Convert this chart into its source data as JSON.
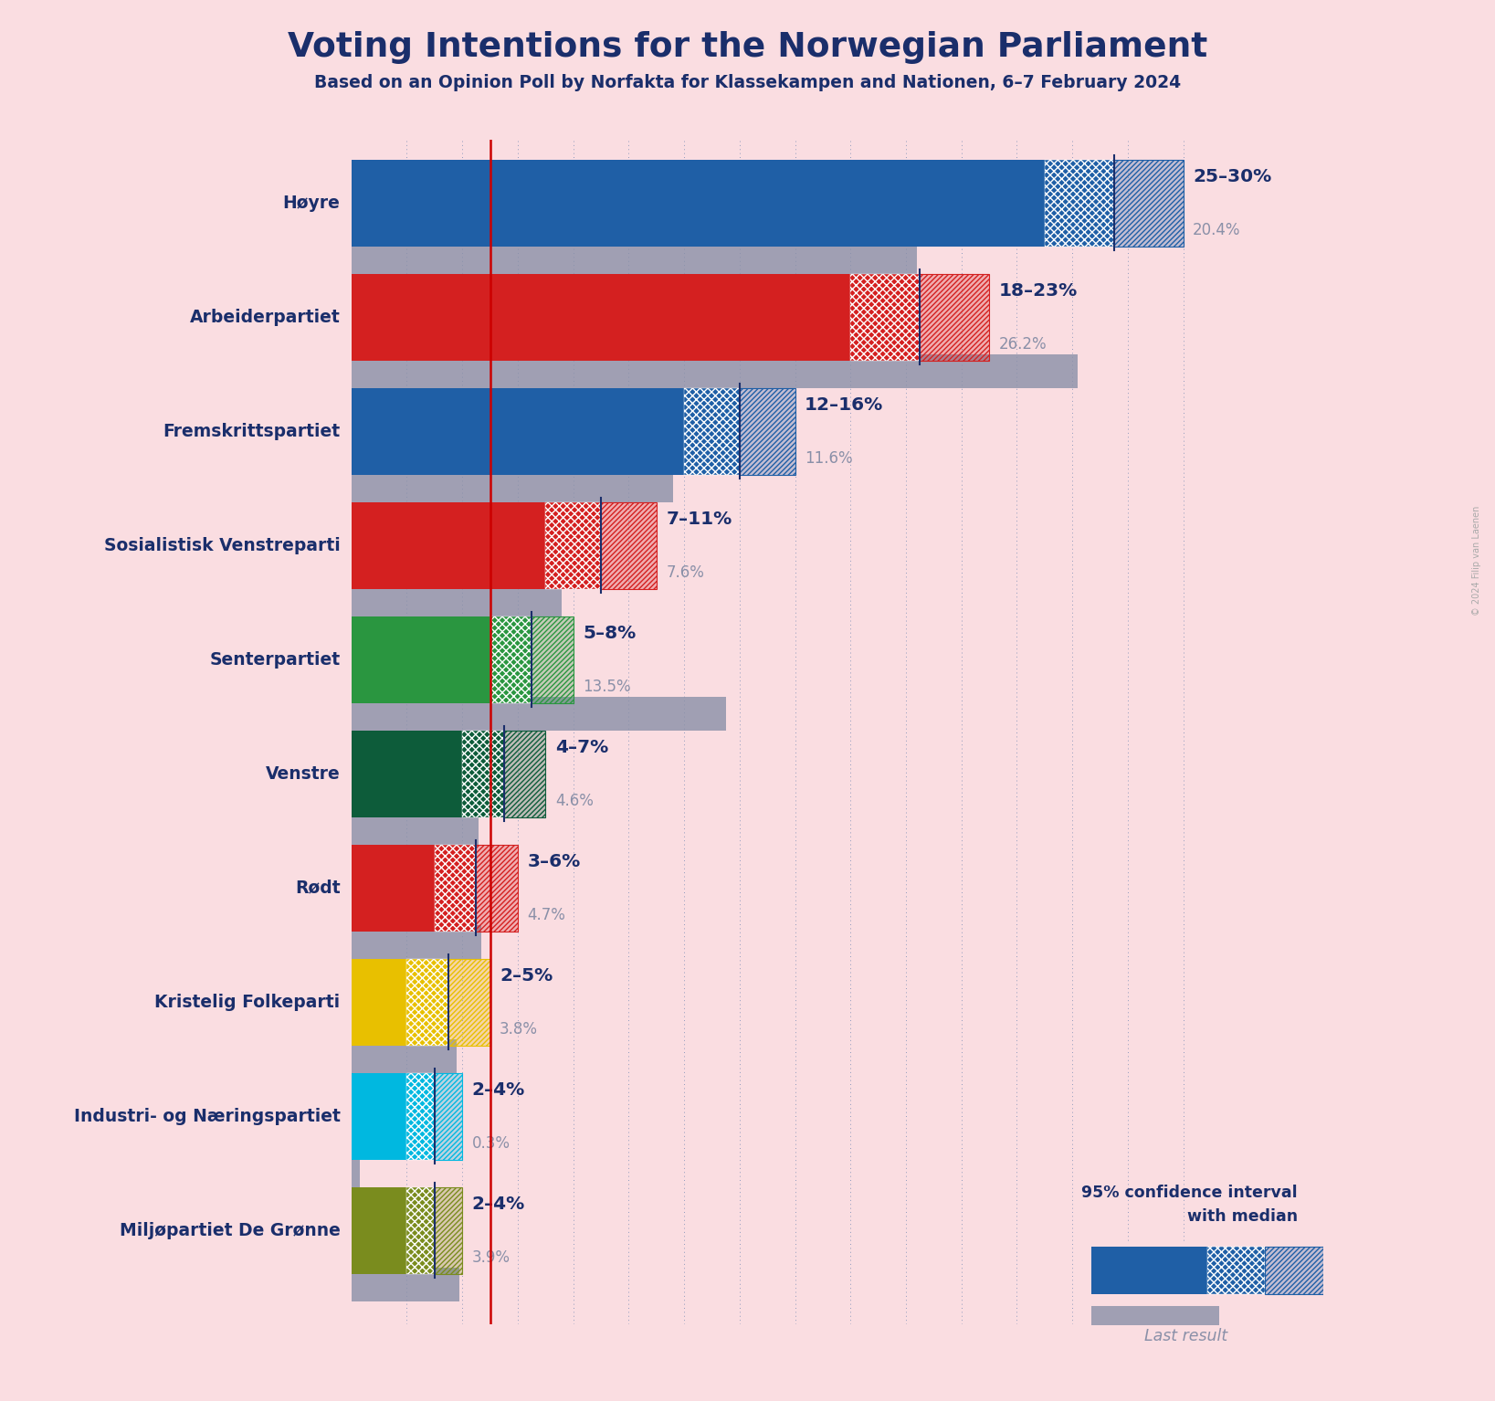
{
  "title": "Voting Intentions for the Norwegian Parliament",
  "subtitle": "Based on an Opinion Poll by Norfakta for Klassekampen and Nationen, 6–7 February 2024",
  "background_color": "#FADDE1",
  "title_color": "#1a2e6b",
  "copyright": "© 2024 Filip van Laenen",
  "parties": [
    {
      "name": "Høyre",
      "ci_low": 25,
      "ci_high": 30,
      "median": 27.5,
      "last_result": 20.4,
      "color": "#1f5fa6",
      "label": "25–30%",
      "last_label": "20.4%"
    },
    {
      "name": "Arbeiderpartiet",
      "ci_low": 18,
      "ci_high": 23,
      "median": 20.5,
      "last_result": 26.2,
      "color": "#d42020",
      "label": "18–23%",
      "last_label": "26.2%"
    },
    {
      "name": "Fremskrittspartiet",
      "ci_low": 12,
      "ci_high": 16,
      "median": 14,
      "last_result": 11.6,
      "color": "#1f5fa6",
      "label": "12–16%",
      "last_label": "11.6%"
    },
    {
      "name": "Sosialistisk Venstreparti",
      "ci_low": 7,
      "ci_high": 11,
      "median": 9,
      "last_result": 7.6,
      "color": "#d42020",
      "label": "7–11%",
      "last_label": "7.6%"
    },
    {
      "name": "Senterpartiet",
      "ci_low": 5,
      "ci_high": 8,
      "median": 6.5,
      "last_result": 13.5,
      "color": "#2a9640",
      "label": "5–8%",
      "last_label": "13.5%"
    },
    {
      "name": "Venstre",
      "ci_low": 4,
      "ci_high": 7,
      "median": 5.5,
      "last_result": 4.6,
      "color": "#0d5c3a",
      "label": "4–7%",
      "last_label": "4.6%"
    },
    {
      "name": "Rødt",
      "ci_low": 3,
      "ci_high": 6,
      "median": 4.5,
      "last_result": 4.7,
      "color": "#d42020",
      "label": "3–6%",
      "last_label": "4.7%"
    },
    {
      "name": "Kristelig Folkeparti",
      "ci_low": 2,
      "ci_high": 5,
      "median": 3.5,
      "last_result": 3.8,
      "color": "#e8c000",
      "label": "2–5%",
      "last_label": "3.8%"
    },
    {
      "name": "Industri- og Næringspartiet",
      "ci_low": 2,
      "ci_high": 4,
      "median": 3,
      "last_result": 0.3,
      "color": "#00b8e0",
      "label": "2–4%",
      "last_label": "0.3%"
    },
    {
      "name": "Miljøpartiet De Grønne",
      "ci_low": 2,
      "ci_high": 4,
      "median": 3,
      "last_result": 3.9,
      "color": "#7a8c1e",
      "label": "2–4%",
      "last_label": "3.9%"
    }
  ],
  "red_line_x": 5.0,
  "xlim_max": 31,
  "grid_ticks": [
    2,
    4,
    6,
    8,
    10,
    12,
    14,
    16,
    18,
    20,
    22,
    24,
    26,
    28,
    30
  ],
  "legend_text1": "95% confidence interval",
  "legend_text2": "with median",
  "legend_text3": "Last result"
}
